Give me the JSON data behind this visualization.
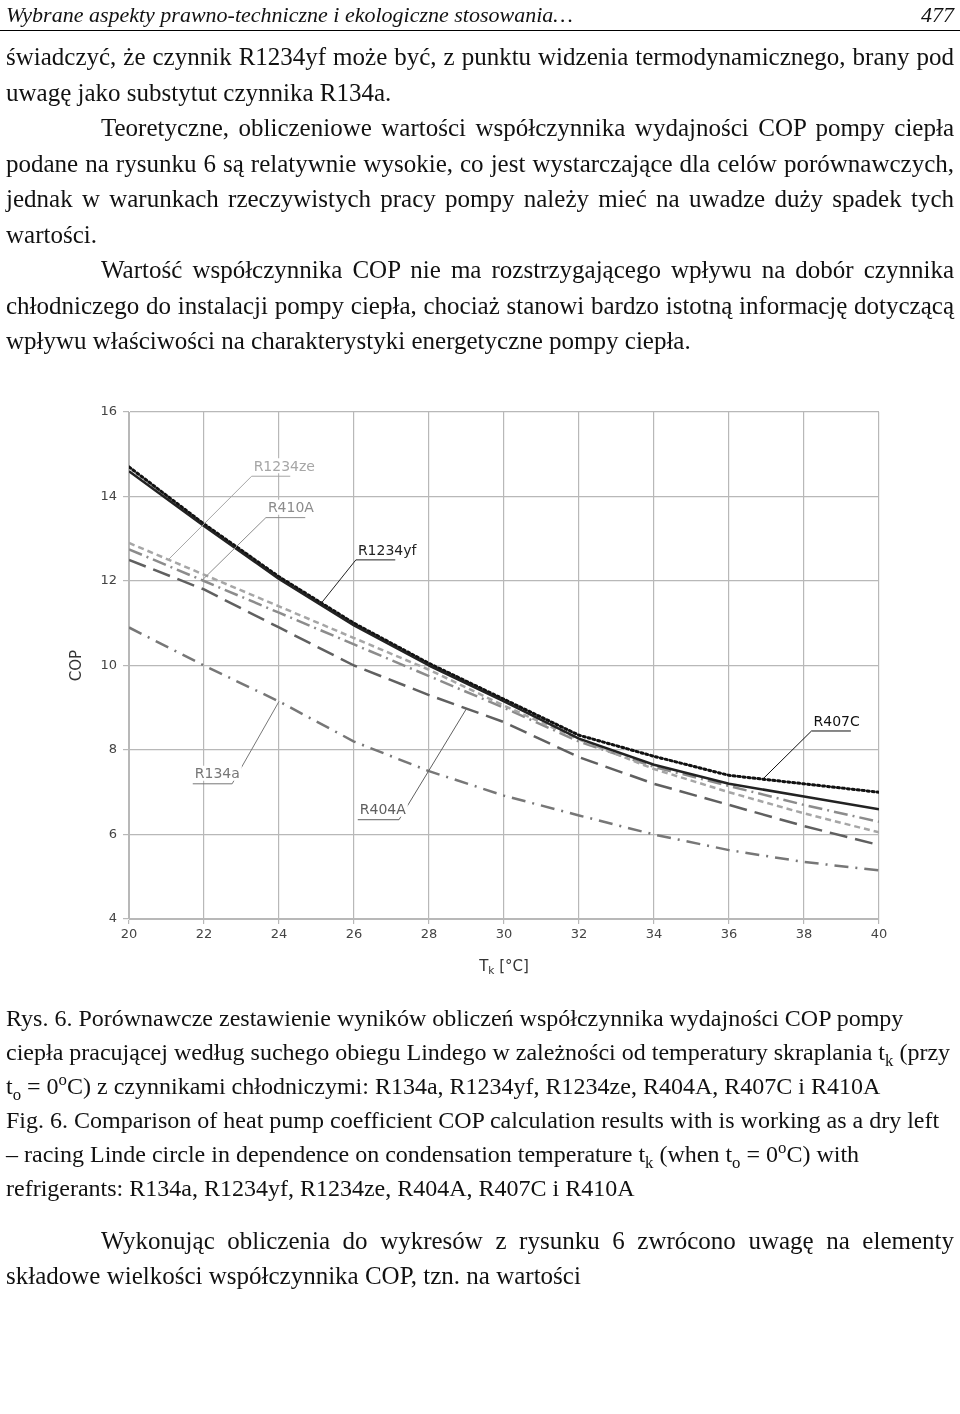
{
  "chart_data": {
    "type": "line",
    "xlabel": "T$_{k}$ [°C]",
    "ylabel": "COP",
    "x": [
      20,
      22,
      24,
      26,
      28,
      30,
      32,
      34,
      36,
      38,
      40
    ],
    "xlim": [
      20,
      40
    ],
    "xticks": [
      20,
      22,
      24,
      26,
      28,
      30,
      32,
      34,
      36,
      38,
      40
    ],
    "ylim": [
      4,
      16
    ],
    "yticks": [
      4,
      6,
      8,
      10,
      12,
      14,
      16
    ],
    "grid": true,
    "legend": false,
    "marker": "none",
    "series": [
      {
        "name": "R1234yf",
        "color": "#222222",
        "line_style": "solid",
        "values": [
          14.6,
          13.3,
          12.05,
          10.95,
          10.0,
          9.15,
          8.27,
          7.65,
          7.2,
          6.9,
          6.6
        ]
      },
      {
        "name": "R407C",
        "color": "#111111",
        "line_style": "dotted",
        "values": [
          14.7,
          13.35,
          12.1,
          11.0,
          10.05,
          9.2,
          8.35,
          7.85,
          7.4,
          7.2,
          7.0
        ]
      },
      {
        "name": "R1234ze",
        "color": "#a6a6a6",
        "line_style": "dashed",
        "values": [
          12.9,
          12.15,
          11.4,
          10.65,
          9.9,
          9.05,
          8.25,
          7.55,
          7.0,
          6.5,
          6.05
        ]
      },
      {
        "name": "R410A",
        "color": "#8c8c8c",
        "line_style": "dashed",
        "values": [
          12.75,
          12.0,
          11.25,
          10.5,
          9.75,
          9.0,
          8.2,
          7.6,
          7.15,
          6.7,
          6.3
        ]
      },
      {
        "name": "R404A",
        "color": "#606060",
        "line_style": "dashed",
        "values": [
          12.5,
          11.8,
          10.9,
          10.0,
          9.3,
          8.66,
          7.83,
          7.2,
          6.7,
          6.2,
          5.75
        ]
      },
      {
        "name": "R134a",
        "color": "#777777",
        "line_style": "dashed",
        "values": [
          10.9,
          10.0,
          9.15,
          8.2,
          7.5,
          6.92,
          6.45,
          6.0,
          5.63,
          5.35,
          5.15
        ]
      }
    ],
    "annotations": [
      "Wybrane aspekty prawno-techniczne i ekologiczne stosowania…",
      "477",
      "świadczyć, że czynnik R1234yf może być, z punktu widzenia termodynamicznego, brany pod uwagę jako substytut czynnika R134a.",
      "Teoretyczne, obliczeniowe wartości współczynnika wydajności COP pompy ciepła podane na rysunku 6 są relatywnie wysokie, co jest wystarczające dla celów porównawczych, jednak w warunkach rzeczywistych pracy pompy należy mieć na uwadze duży spadek tych wartości.",
      "Wartość współczynnika COP nie ma rozstrzygającego wpływu na dobór czynnika chłodniczego do instalacji pompy ciepła, chociaż stanowi bardzo istotną informację dotyczącą wpływu właściwości na charakterystyki energetyczne pompy ciepła.",
      "Rys. 6. Porównawcze zestawienie wyników obliczeń współczynnika wydajności COP pompy ciepła pracującej  według suchego obiegu Lindego w zależności od temperatury skraplania t$_{k}$ (przy t$_{o}$ = 0$^{o}$C) z czynnikami chłodniczymi: R134a, R1234yf, R1234ze, R404A, R407C i R410A",
      "Fig. 6. Comparison of heat pump coefficient COP calculation results with is working as a dry left – racing Linde circle in dependence on condensation temperature t$_{k}$ (when t$_{o}$ = 0$^{o}$C) with refrigerants: R134a, R1234yf, R1234ze, R404A, R407C i R410A",
      "Wykonując obliczenia do wykresów z rysunku 6 zwrócono uwagę na elementy składowe wielkości współczynnika COP, tzn. na wartości"
    ]
  }
}
